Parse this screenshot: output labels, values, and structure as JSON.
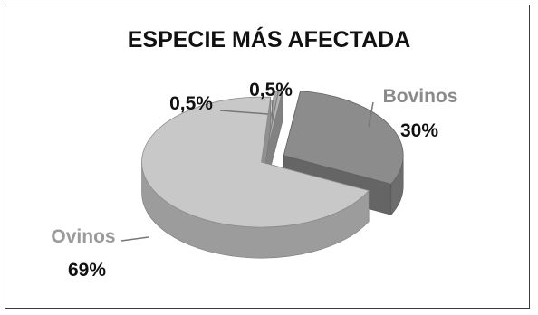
{
  "chart_data": {
    "type": "pie",
    "title": "ESPECIE MÁS AFECTADA",
    "style": "3d-exploded",
    "legend": "none",
    "slices": [
      {
        "name": "Bovinos",
        "value": 30,
        "label": "30%",
        "color": "#8c8c8c",
        "name_color": "#8a8a8a"
      },
      {
        "name": "Ovinos",
        "value": 69,
        "label": "69%",
        "color": "#c8c8c8",
        "name_color": "#9a9a9a"
      },
      {
        "name": "",
        "value": 0.5,
        "label": "0,5%",
        "color": "#a9a9a9"
      },
      {
        "name": "",
        "value": 0.5,
        "label": "0,5%",
        "color": "#b5b5b5"
      }
    ]
  }
}
